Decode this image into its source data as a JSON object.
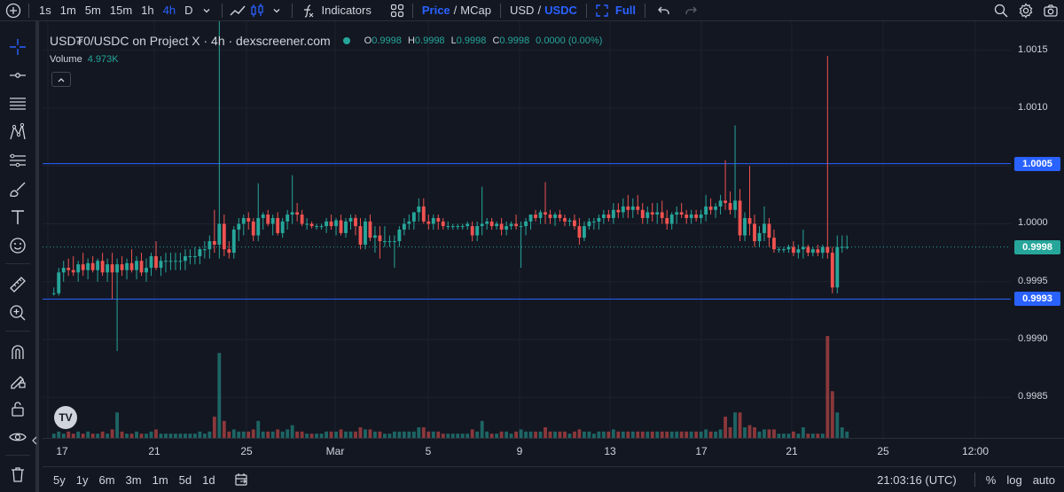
{
  "toolbar": {
    "timeframes": [
      "1s",
      "1m",
      "5m",
      "15m",
      "1h",
      "4h",
      "D"
    ],
    "active_timeframe": "4h",
    "indicators_label": "Indicators",
    "price_label": "Price",
    "price_sep": "/",
    "mcap_label": "MCap",
    "usd_label": "USD",
    "quote_sep": "/",
    "usdc_label": "USDC",
    "full_label": "Full"
  },
  "legend": {
    "title": "USD₮0/USDC on Project X · 4h · dexscreener.com",
    "o_key": "O",
    "o_val": "0.9998",
    "h_key": "H",
    "h_val": "0.9998",
    "l_key": "L",
    "l_val": "0.9998",
    "c_key": "C",
    "c_val": "0.9998",
    "change": "0.0000 (0.00%)",
    "volume_label": "Volume",
    "volume_val": "4.973K"
  },
  "price_axis": {
    "labels": [
      "1.0015",
      "1.0010",
      "1.0005",
      "1.0000",
      "0.9995",
      "0.9990",
      "0.9985"
    ],
    "tag_upper": "1.0005",
    "tag_current": "0.9998",
    "tag_lower": "0.9993"
  },
  "time_axis": {
    "labels": [
      "17",
      "21",
      "25",
      "Mar",
      "5",
      "9",
      "13",
      "17",
      "21",
      "25",
      "12:00"
    ]
  },
  "bottom": {
    "ranges": [
      "5y",
      "1y",
      "6m",
      "3m",
      "1m",
      "5d",
      "1d"
    ],
    "clock": "21:03:16 (UTC)",
    "percent": "%",
    "log": "log",
    "auto": "auto"
  },
  "colors": {
    "up": "#26a69a",
    "down": "#ef5350",
    "line": "#2962ff",
    "bg": "#131722"
  },
  "chart_data": {
    "type": "candlestick",
    "ylim": [
      0.99815,
      1.00175
    ],
    "hlines": [
      1.00052,
      0.99935
    ],
    "current": 0.9998,
    "candles": [
      [
        0.9994,
        0.99945,
        0.99938,
        0.9994,
        2
      ],
      [
        0.9994,
        0.99962,
        0.99938,
        0.99958,
        3
      ],
      [
        0.99958,
        0.99968,
        0.9995,
        0.99962,
        2
      ],
      [
        0.99962,
        0.9997,
        0.99955,
        0.9996,
        3
      ],
      [
        0.9996,
        0.99972,
        0.99955,
        0.99958,
        2
      ],
      [
        0.99958,
        0.99968,
        0.9995,
        0.99965,
        3
      ],
      [
        0.99965,
        0.99975,
        0.99955,
        0.9996,
        2
      ],
      [
        0.9996,
        0.9997,
        0.99952,
        0.99966,
        3
      ],
      [
        0.99966,
        0.99972,
        0.99958,
        0.9996,
        2
      ],
      [
        0.9996,
        0.9997,
        0.9995,
        0.99968,
        2
      ],
      [
        0.99968,
        0.99975,
        0.99955,
        0.99958,
        3
      ],
      [
        0.99958,
        0.9997,
        0.9995,
        0.99965,
        2
      ],
      [
        0.99965,
        0.99975,
        0.99935,
        0.99958,
        4
      ],
      [
        0.99958,
        0.9997,
        0.9989,
        0.99965,
        12
      ],
      [
        0.99965,
        0.99972,
        0.99955,
        0.9996,
        3
      ],
      [
        0.9996,
        0.9997,
        0.99952,
        0.99966,
        2
      ],
      [
        0.99966,
        0.99978,
        0.99958,
        0.9996,
        2
      ],
      [
        0.9996,
        0.99972,
        0.99952,
        0.99968,
        3
      ],
      [
        0.99968,
        0.99975,
        0.99955,
        0.99958,
        2
      ],
      [
        0.99958,
        0.9997,
        0.9995,
        0.99962,
        2
      ],
      [
        0.99962,
        0.99975,
        0.99955,
        0.99972,
        3
      ],
      [
        0.99972,
        0.99985,
        0.9996,
        0.99962,
        4
      ],
      [
        0.99962,
        0.99972,
        0.99955,
        0.99968,
        2
      ],
      [
        0.99968,
        0.99975,
        0.99958,
        0.99968,
        2
      ],
      [
        0.99968,
        0.99975,
        0.9996,
        0.99968,
        2
      ],
      [
        0.99968,
        0.99975,
        0.9996,
        0.99968,
        2
      ],
      [
        0.99968,
        0.99975,
        0.9996,
        0.99968,
        2
      ],
      [
        0.99968,
        0.99978,
        0.9996,
        0.99972,
        2
      ],
      [
        0.99972,
        0.99978,
        0.99965,
        0.99972,
        2
      ],
      [
        0.99972,
        0.9998,
        0.99965,
        0.99972,
        2
      ],
      [
        0.99972,
        0.9998,
        0.99965,
        0.99978,
        3
      ],
      [
        0.99978,
        0.99985,
        0.9997,
        0.99978,
        2
      ],
      [
        0.99978,
        0.9999,
        0.9997,
        0.99985,
        3
      ],
      [
        0.99985,
        1.00012,
        0.99975,
        0.99982,
        10
      ],
      [
        0.99982,
        1.00235,
        0.9997,
        1.0,
        40
      ],
      [
        1.0,
        1.00008,
        0.99972,
        0.99978,
        8
      ],
      [
        0.99978,
        0.99985,
        0.9997,
        0.99975,
        3
      ],
      [
        0.99975,
        0.99998,
        0.9997,
        0.99995,
        4
      ],
      [
        0.99995,
        1.00005,
        0.99985,
        1.0,
        3
      ],
      [
        1.0,
        1.00008,
        0.9999,
        1.00005,
        3
      ],
      [
        1.00005,
        1.0001,
        0.99995,
        1.00002,
        3
      ],
      [
        1.00002,
        1.00005,
        0.99985,
        0.9999,
        4
      ],
      [
        0.9999,
        1.00035,
        0.99985,
        1.00005,
        8
      ],
      [
        1.00005,
        1.0001,
        0.99995,
        1.00008,
        3
      ],
      [
        1.00008,
        1.00012,
        0.99998,
        1.0,
        3
      ],
      [
        1.0,
        1.00008,
        0.9999,
        1.00005,
        3
      ],
      [
        1.00005,
        1.0001,
        0.9999,
        0.99992,
        4
      ],
      [
        0.99992,
        1.00005,
        0.99988,
        1.00002,
        3
      ],
      [
        1.00002,
        1.00012,
        0.99995,
        1.00008,
        4
      ],
      [
        1.00008,
        1.00042,
        1.0,
        1.0001,
        6
      ],
      [
        1.0001,
        1.00018,
        1.00002,
        1.00008,
        3
      ],
      [
        1.00008,
        1.00012,
        0.99998,
        1.0,
        3
      ],
      [
        1.0,
        1.00005,
        0.99995,
        1.0,
        2
      ],
      [
        1.0,
        1.00002,
        0.99996,
        0.99998,
        2
      ],
      [
        0.99998,
        1.0,
        0.99995,
        0.99998,
        2
      ],
      [
        0.99998,
        1.0,
        0.99995,
        0.99998,
        2
      ],
      [
        0.99998,
        1.00005,
        0.99992,
        1.00002,
        3
      ],
      [
        1.00002,
        1.00008,
        0.99995,
        0.99998,
        3
      ],
      [
        0.99998,
        1.00005,
        0.9999,
        1.00003,
        3
      ],
      [
        1.00003,
        1.00008,
        0.9999,
        0.99992,
        4
      ],
      [
        0.99992,
        1.00005,
        0.99988,
        1.00002,
        3
      ],
      [
        1.00002,
        1.00008,
        0.99995,
        1.00005,
        3
      ],
      [
        1.00005,
        1.00008,
        0.9999,
        0.99998,
        3
      ],
      [
        0.99998,
        1.00005,
        0.99978,
        0.99982,
        5
      ],
      [
        0.99982,
        1.00005,
        0.99978,
        1.00002,
        4
      ],
      [
        1.00002,
        1.00008,
        0.99985,
        0.99988,
        4
      ],
      [
        0.99988,
        0.99998,
        0.99975,
        0.9999,
        3
      ],
      [
        0.9999,
        0.99998,
        0.9997,
        0.99985,
        3
      ],
      [
        0.99985,
        0.99998,
        0.9998,
        0.99985,
        2
      ],
      [
        0.99985,
        0.9999,
        0.9998,
        0.99985,
        2
      ],
      [
        0.99985,
        0.9999,
        0.99962,
        0.99985,
        3
      ],
      [
        0.99985,
        0.99998,
        0.9998,
        0.99995,
        3
      ],
      [
        0.99995,
        1.00005,
        0.9999,
        1.0,
        3
      ],
      [
        1.0,
        1.00008,
        0.99995,
        1.00002,
        3
      ],
      [
        1.00002,
        1.00008,
        0.99995,
        1.0001,
        3
      ],
      [
        1.0001,
        1.00022,
        1.00002,
        1.00015,
        5
      ],
      [
        1.00015,
        1.00022,
        1.0,
        1.00002,
        5
      ],
      [
        1.00002,
        1.00008,
        0.99995,
        1.0,
        3
      ],
      [
        1.0,
        1.00008,
        0.99995,
        1.00005,
        3
      ],
      [
        1.00005,
        1.00008,
        0.99995,
        1.00002,
        3
      ],
      [
        1.00002,
        1.00005,
        0.99995,
        0.99998,
        2
      ],
      [
        0.99998,
        1.00002,
        0.99995,
        0.99998,
        2
      ],
      [
        0.99998,
        1.0,
        0.99995,
        0.99998,
        2
      ],
      [
        0.99998,
        1.0,
        0.99995,
        0.99998,
        2
      ],
      [
        0.99998,
        1.0,
        0.99995,
        0.99998,
        2
      ],
      [
        0.99998,
        1.00002,
        0.99995,
        1.0,
        2
      ],
      [
        0.99998,
        1.00002,
        0.99985,
        0.9999,
        4
      ],
      [
        0.9999,
        1.00002,
        0.99985,
        0.99998,
        3
      ],
      [
        0.99998,
        1.00032,
        0.9999,
        1.0,
        8
      ],
      [
        1.0,
        1.00005,
        0.99995,
        1.00002,
        3
      ],
      [
        1.00002,
        1.00005,
        0.99995,
        0.99998,
        2
      ],
      [
        0.99998,
        1.00002,
        0.99995,
        1.0,
        2
      ],
      [
        1.0,
        1.00005,
        0.9999,
        0.99995,
        3
      ],
      [
        0.99995,
        1.00002,
        0.9999,
        0.99998,
        3
      ],
      [
        0.99998,
        1.00002,
        0.99995,
        1.0,
        2
      ],
      [
        1.0,
        1.00008,
        0.99995,
        0.99998,
        3
      ],
      [
        0.99998,
        1.00002,
        0.99962,
        0.99998,
        4
      ],
      [
        0.99998,
        1.00005,
        0.9999,
        1.00002,
        3
      ],
      [
        1.00002,
        1.00008,
        0.99995,
        1.00008,
        3
      ],
      [
        1.00008,
        1.00012,
        1.00002,
        1.00005,
        3
      ],
      [
        1.00005,
        1.00012,
        1.0,
        1.0001,
        3
      ],
      [
        1.0001,
        1.00036,
        1.0,
        1.00008,
        5
      ],
      [
        1.00008,
        1.00012,
        1.0,
        1.00005,
        3
      ],
      [
        1.00005,
        1.0001,
        0.99998,
        1.00008,
        3
      ],
      [
        1.00008,
        1.00012,
        1.00002,
        1.00005,
        3
      ],
      [
        1.00005,
        1.00008,
        0.99998,
        1.00002,
        3
      ],
      [
        1.00002,
        1.00005,
        0.99998,
        1.00003,
        2
      ],
      [
        1.00003,
        1.00008,
        0.99995,
        0.99998,
        3
      ],
      [
        0.99998,
        1.00005,
        0.99982,
        0.99988,
        4
      ],
      [
        0.99988,
        1.00002,
        0.99985,
        0.99998,
        3
      ],
      [
        0.99998,
        1.00005,
        0.99995,
        1.00002,
        3
      ],
      [
        1.00002,
        1.00005,
        0.99995,
        1.00002,
        2
      ],
      [
        1.00002,
        1.00008,
        0.99995,
        1.00005,
        3
      ],
      [
        1.00005,
        1.00012,
        1.0,
        1.00008,
        3
      ],
      [
        1.00008,
        1.00012,
        1.00002,
        1.00005,
        3
      ],
      [
        1.00005,
        1.00018,
        1.0,
        1.00012,
        4
      ],
      [
        1.00012,
        1.00018,
        1.00005,
        1.0001,
        3
      ],
      [
        1.0001,
        1.00022,
        1.00005,
        1.00015,
        3
      ],
      [
        1.00015,
        1.00025,
        1.00005,
        1.00012,
        3
      ],
      [
        1.00012,
        1.00022,
        1.00005,
        1.00015,
        3
      ],
      [
        1.00015,
        1.00025,
        1.00008,
        1.00012,
        3
      ],
      [
        1.00012,
        1.00018,
        1.0,
        1.00005,
        3
      ],
      [
        1.00005,
        1.00015,
        1.0,
        1.0001,
        3
      ],
      [
        1.0001,
        1.00018,
        1.00002,
        1.00008,
        3
      ],
      [
        1.00008,
        1.00018,
        1.0,
        1.0001,
        3
      ],
      [
        1.0001,
        1.0002,
        1.0,
        1.00005,
        3
      ],
      [
        1.00005,
        1.00012,
        0.99995,
        1.0,
        3
      ],
      [
        1.0,
        1.0001,
        0.99995,
        1.00008,
        3
      ],
      [
        1.00008,
        1.00015,
        1.0,
        1.0001,
        3
      ],
      [
        1.0001,
        1.00018,
        1.00005,
        1.00008,
        3
      ],
      [
        1.00008,
        1.00012,
        1.0,
        1.00005,
        3
      ],
      [
        1.00005,
        1.00012,
        1.0,
        1.00008,
        3
      ],
      [
        1.00008,
        1.00012,
        1.00002,
        1.00005,
        3
      ],
      [
        1.00005,
        1.00012,
        1.0,
        1.00008,
        3
      ],
      [
        1.00008,
        1.00025,
        1.00002,
        1.00015,
        4
      ],
      [
        1.00015,
        1.00022,
        1.00008,
        1.00012,
        3
      ],
      [
        1.00012,
        1.00018,
        1.00005,
        1.00015,
        3
      ],
      [
        1.00015,
        1.00025,
        1.00008,
        1.0002,
        4
      ],
      [
        1.0002,
        1.00055,
        1.00012,
        1.00018,
        10
      ],
      [
        1.00018,
        1.00028,
        1.00008,
        1.00012,
        5
      ],
      [
        1.00012,
        1.00085,
        1.00005,
        1.0002,
        12
      ],
      [
        1.0002,
        1.0003,
        0.99985,
        0.9999,
        12
      ],
      [
        0.9999,
        1.0001,
        0.99985,
        1.00005,
        5
      ],
      [
        1.00005,
        1.0005,
        0.9999,
        1.0,
        6
      ],
      [
        1.0,
        1.00008,
        0.9998,
        0.99985,
        5
      ],
      [
        0.99985,
        0.99998,
        0.9998,
        0.99992,
        3
      ],
      [
        0.99992,
        1.00015,
        0.99985,
        1.0,
        4
      ],
      [
        1.0,
        1.00005,
        0.9998,
        0.99988,
        4
      ],
      [
        0.99988,
        0.99995,
        0.99975,
        0.99978,
        4
      ],
      [
        0.99978,
        0.9998,
        0.99975,
        0.99978,
        2
      ],
      [
        0.99978,
        0.9998,
        0.99975,
        0.99978,
        2
      ],
      [
        0.99978,
        0.99982,
        0.99975,
        0.9998,
        2
      ],
      [
        0.9998,
        0.99985,
        0.99972,
        0.99975,
        3
      ],
      [
        0.99975,
        0.99982,
        0.9997,
        0.99978,
        2
      ],
      [
        0.99978,
        0.99995,
        0.9997,
        0.9998,
        5
      ],
      [
        0.9998,
        0.99982,
        0.99972,
        0.99975,
        2
      ],
      [
        0.99975,
        0.9998,
        0.99972,
        0.99978,
        2
      ],
      [
        0.99978,
        0.99982,
        0.99972,
        0.99975,
        2
      ],
      [
        0.99975,
        0.99982,
        0.9997,
        0.9998,
        2
      ],
      [
        0.9998,
        1.00145,
        0.9997,
        0.99975,
        48
      ],
      [
        0.99975,
        0.9998,
        0.9994,
        0.99945,
        22
      ],
      [
        0.99945,
        0.9999,
        0.9994,
        0.9998,
        12
      ],
      [
        0.9998,
        0.9999,
        0.99975,
        0.9998,
        5
      ],
      [
        0.9998,
        0.9999,
        0.99978,
        0.9998,
        3
      ]
    ]
  }
}
